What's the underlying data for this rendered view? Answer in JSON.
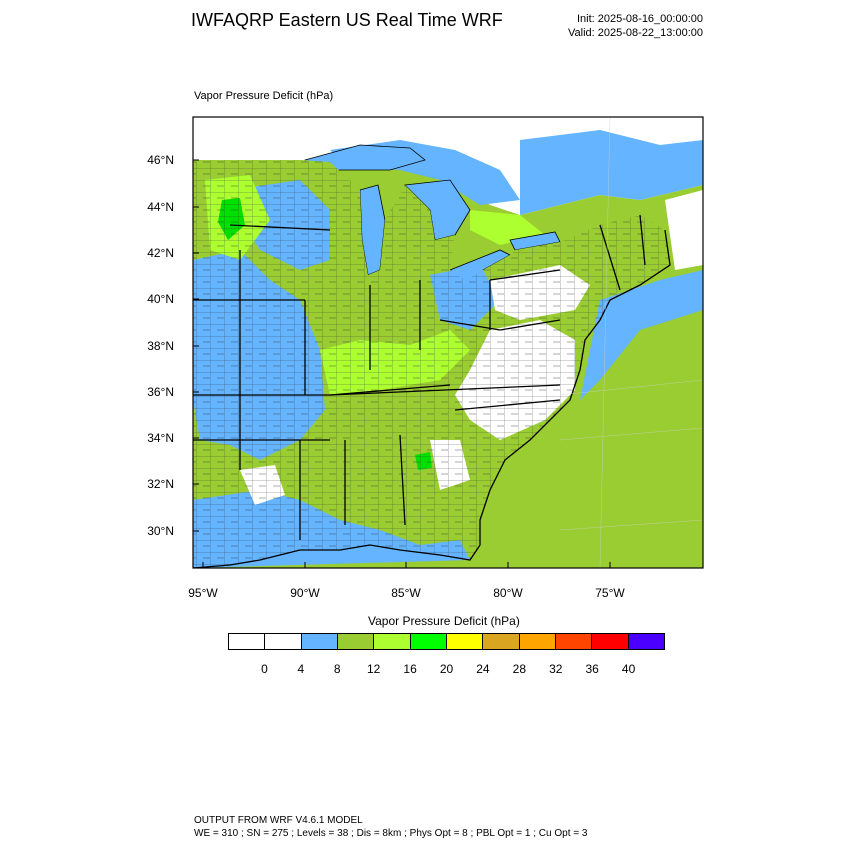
{
  "header": {
    "title": "IWFAQRP Eastern US Real Time WRF",
    "init": "Init: 2025-08-16_00:00:00",
    "valid": "Valid: 2025-08-22_13:00:00"
  },
  "map": {
    "label": "Vapor Pressure Deficit   (hPa)",
    "lat_ticks": [
      "46°N",
      "44°N",
      "42°N",
      "40°N",
      "38°N",
      "36°N",
      "34°N",
      "32°N",
      "30°N"
    ],
    "lon_ticks": [
      "95°W",
      "90°W",
      "85°W",
      "80°W",
      "75°W"
    ],
    "colors": {
      "ocean": "#9acd32",
      "light_blue": "#64b4ff",
      "white": "#ffffff",
      "green": "#9acd32",
      "bright_green": "#adff2f",
      "lime": "#00e000"
    }
  },
  "colorbar": {
    "title": "Vapor Pressure Deficit  (hPa)",
    "colors": [
      "#ffffff",
      "#ffffff",
      "#64b4ff",
      "#9acd32",
      "#adff2f",
      "#00ff00",
      "#ffff00",
      "#daa520",
      "#ffa500",
      "#ff4500",
      "#ff0000",
      "#4b00ff"
    ],
    "labels": [
      "0",
      "4",
      "8",
      "12",
      "16",
      "20",
      "24",
      "28",
      "32",
      "36",
      "40"
    ]
  },
  "footer": {
    "line1": "OUTPUT FROM WRF V4.6.1 MODEL",
    "line2": "WE = 310 ; SN = 275 ; Levels = 38 ; Dis = 8km ; Phys Opt = 8 ; PBL Opt = 1 ; Cu Opt = 3"
  }
}
